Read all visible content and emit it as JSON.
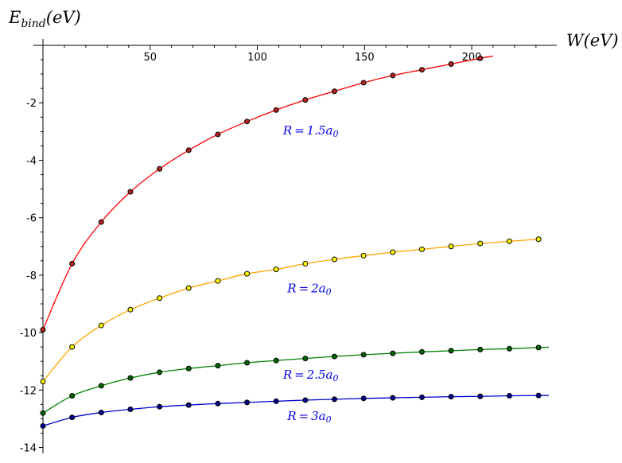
{
  "chart_data": {
    "type": "line",
    "title": "",
    "xlabel": "W(eV)",
    "ylabel": "E_bind(eV)",
    "xlim": [
      0,
      240
    ],
    "ylim": [
      -14.2,
      0
    ],
    "x_ticks": [
      50,
      100,
      150,
      200
    ],
    "y_ticks": [
      -2,
      -4,
      -6,
      -8,
      -10,
      -12,
      -14
    ],
    "x_minor_step": 10,
    "y_minor_step": 0.5,
    "grid": false,
    "legend": "none",
    "series": [
      {
        "name": "R = 1.5a0",
        "label_main": "R = 1.",
        "label_tail": "5a",
        "label_sub": "0",
        "color": "#e41a1c",
        "line_color": "#ff0000",
        "marker_fill": "#b22222",
        "curve_end_x": 210,
        "label_pos": [
          112,
          -3.1
        ],
        "x": [
          0,
          13.6,
          27.2,
          40.8,
          54.4,
          68,
          81.6,
          95.2,
          108.8,
          122.4,
          136,
          149.6,
          163.2,
          176.8,
          190.4,
          204
        ],
        "values": [
          -9.9,
          -7.6,
          -6.15,
          -5.1,
          -4.3,
          -3.65,
          -3.1,
          -2.65,
          -2.25,
          -1.9,
          -1.6,
          -1.3,
          -1.05,
          -0.85,
          -0.65,
          -0.45
        ]
      },
      {
        "name": "R = 2a0",
        "label_main": "R = ",
        "label_tail": "2a",
        "label_sub": "0",
        "color": "#ffa500",
        "line_color": "#ffa500",
        "marker_fill": "#ffff00",
        "curve_end_x": 232,
        "label_pos": [
          114,
          -8.6
        ],
        "x": [
          0,
          13.6,
          27.2,
          40.8,
          54.4,
          68,
          81.6,
          95.2,
          108.8,
          122.4,
          136,
          149.6,
          163.2,
          176.8,
          190.4,
          204,
          217.6,
          231.2
        ],
        "values": [
          -11.7,
          -10.5,
          -9.75,
          -9.2,
          -8.8,
          -8.45,
          -8.2,
          -7.95,
          -7.8,
          -7.6,
          -7.45,
          -7.32,
          -7.2,
          -7.1,
          -7.0,
          -6.9,
          -6.82,
          -6.75
        ]
      },
      {
        "name": "R = 2.5a0",
        "label_main": "R = 2.",
        "label_tail": "5a",
        "label_sub": "0",
        "color": "#008000",
        "line_color": "#008000",
        "marker_fill": "#006400",
        "curve_end_x": 236,
        "label_pos": [
          112,
          -11.6
        ],
        "x": [
          0,
          13.6,
          27.2,
          40.8,
          54.4,
          68,
          81.6,
          95.2,
          108.8,
          122.4,
          136,
          149.6,
          163.2,
          176.8,
          190.4,
          204,
          217.6,
          231.2
        ],
        "values": [
          -12.8,
          -12.2,
          -11.85,
          -11.58,
          -11.38,
          -11.25,
          -11.15,
          -11.05,
          -10.97,
          -10.9,
          -10.83,
          -10.77,
          -10.72,
          -10.67,
          -10.63,
          -10.59,
          -10.56,
          -10.52
        ]
      },
      {
        "name": "R = 3a0",
        "label_main": "R = ",
        "label_tail": "3a",
        "label_sub": "0",
        "color": "#0000cd",
        "line_color": "#0000cd",
        "marker_fill": "#00008b",
        "curve_end_x": 236,
        "label_pos": [
          114,
          -13.05
        ],
        "x": [
          0,
          13.6,
          27.2,
          40.8,
          54.4,
          68,
          81.6,
          95.2,
          108.8,
          122.4,
          136,
          149.6,
          163.2,
          176.8,
          190.4,
          204,
          217.6,
          231.2
        ],
        "values": [
          -13.25,
          -12.95,
          -12.78,
          -12.67,
          -12.58,
          -12.52,
          -12.47,
          -12.43,
          -12.39,
          -12.35,
          -12.32,
          -12.29,
          -12.27,
          -12.25,
          -12.23,
          -12.22,
          -12.2,
          -12.19
        ]
      }
    ]
  }
}
